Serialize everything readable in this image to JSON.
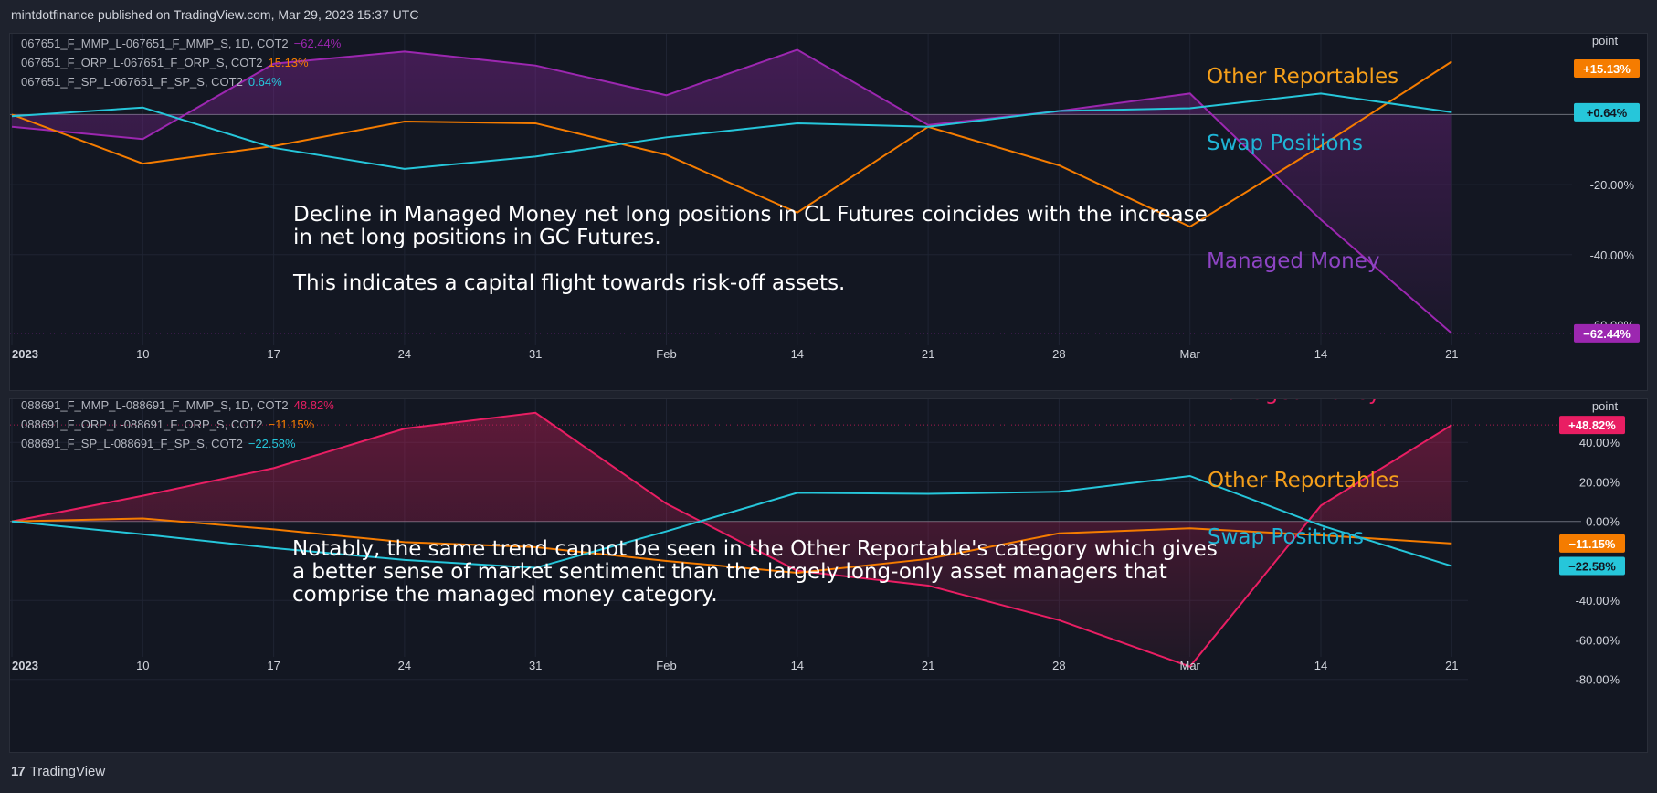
{
  "header": {
    "publisher": "mintdotfinance published on TradingView.com, Mar 29, 2023 15:37 UTC"
  },
  "footer": {
    "logo_text": "TradingView"
  },
  "chart_data": [
    {
      "type": "line",
      "panel": "top",
      "y_scale_label": "point",
      "x": [
        "2023-01-03",
        "2023-01-10",
        "2023-01-17",
        "2023-01-24",
        "2023-01-31",
        "2023-02-07",
        "2023-02-14",
        "2023-02-21",
        "2023-02-28",
        "2023-03-07",
        "2023-03-14",
        "2023-03-21"
      ],
      "x_ticks": [
        "2023",
        "10",
        "17",
        "24",
        "31",
        "Feb",
        "14",
        "21",
        "28",
        "Mar",
        "14",
        "21"
      ],
      "y_ticks": [
        "-20.00%",
        "-40.00%",
        "-60.00%"
      ],
      "ylim": [
        -63,
        22
      ],
      "series": [
        {
          "name": "067651_F_MMP_L-067651_F_MMP_S, 1D, COT2",
          "label": "Managed Money",
          "last": "−62.44%",
          "badge": "−62.44%",
          "color": "#9c27b0",
          "label_color": "#8e44c4",
          "values": [
            -3.5,
            -7.0,
            14.5,
            18.0,
            14.0,
            5.5,
            18.5,
            -3.0,
            1.0,
            6.0,
            -30.0,
            -62.44
          ]
        },
        {
          "name": "067651_F_ORP_L-067651_F_ORP_S, COT2",
          "label": "Other Reportables",
          "last": "15.13%",
          "badge": "+15.13%",
          "color": "#f57c00",
          "label_color": "#f59f1a",
          "values": [
            0.0,
            -14.0,
            -9.0,
            -2.0,
            -2.5,
            -11.5,
            -28.0,
            -3.5,
            -14.5,
            -32.0,
            -9.0,
            15.13
          ]
        },
        {
          "name": "067651_F_SP_L-067651_F_SP_S, COT2",
          "label": "Swap Positions",
          "last": "0.64%",
          "badge": "+0.64%",
          "color": "#26c6da",
          "label_color": "#1fb5d6",
          "values": [
            -0.5,
            2.0,
            -9.5,
            -15.5,
            -12.0,
            -6.5,
            -2.5,
            -3.5,
            1.0,
            1.8,
            6.0,
            0.64
          ]
        }
      ],
      "annotation": "Decline in Managed Money net long positions in CL Futures coincides with the increase\nin net long positions in GC Futures.\n\nThis indicates a capital flight towards risk-off assets."
    },
    {
      "type": "line",
      "panel": "bottom",
      "y_scale_label": "point",
      "x": [
        "2023-01-03",
        "2023-01-10",
        "2023-01-17",
        "2023-01-24",
        "2023-01-31",
        "2023-02-07",
        "2023-02-14",
        "2023-02-21",
        "2023-02-28",
        "2023-03-07",
        "2023-03-14",
        "2023-03-21"
      ],
      "x_ticks": [
        "2023",
        "10",
        "17",
        "24",
        "31",
        "Feb",
        "14",
        "21",
        "28",
        "Mar",
        "14",
        "21"
      ],
      "y_ticks": [
        "40.00%",
        "20.00%",
        "0.00%",
        "-40.00%",
        "-60.00%",
        "-80.00%"
      ],
      "ylim": [
        -88,
        60
      ],
      "series": [
        {
          "name": "088691_F_MMP_L-088691_F_MMP_S, 1D, COT2",
          "label": "Managed Money",
          "last": "48.82%",
          "badge": "+48.82%",
          "color": "#e91e63",
          "label_color": "#e91e63",
          "values": [
            0.0,
            13.0,
            27.0,
            47.0,
            55.0,
            9.0,
            -25.0,
            -32.5,
            -50.0,
            -73.5,
            8.0,
            48.82
          ]
        },
        {
          "name": "088691_F_ORP_L-088691_F_ORP_S, COT2",
          "label": "Other Reportables",
          "last": "−11.15%",
          "badge": "−11.15%",
          "color": "#f57c00",
          "label_color": "#f59f1a",
          "values": [
            0.0,
            1.5,
            -4.0,
            -10.5,
            -13.0,
            -20.0,
            -26.0,
            -19.0,
            -6.0,
            -3.5,
            -7.0,
            -11.15
          ]
        },
        {
          "name": "088691_F_SP_L-088691_F_SP_S, COT2",
          "label": "Swap Positions",
          "last": "−22.58%",
          "badge": "−22.58%",
          "color": "#26c6da",
          "label_color": "#1fb5d6",
          "values": [
            0.0,
            -6.5,
            -13.5,
            -19.5,
            -23.5,
            -5.0,
            14.5,
            14.0,
            15.0,
            23.0,
            -2.0,
            -22.58
          ]
        }
      ],
      "annotation": "Notably, the same trend cannot be seen in the Other Reportable's category which gives\na better sense of market sentiment than the largely long-only asset managers that\ncomprise the managed money category."
    }
  ]
}
